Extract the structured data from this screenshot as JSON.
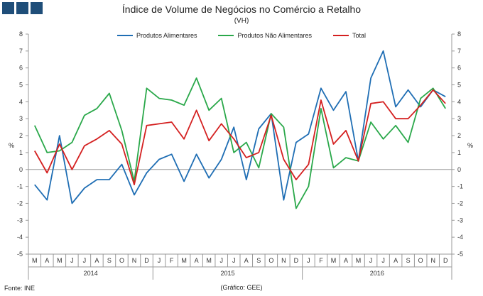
{
  "header": {
    "logo_squares": 3
  },
  "footer": {
    "source": "Fonte: INE",
    "credit": "(Gráfico: GEE)"
  },
  "chart_data": {
    "type": "line",
    "title": "Índice de Volume de Negócios no Comércio a Retalho",
    "subtitle": "(VH)",
    "ylabel_left": "%",
    "ylabel_right": "%",
    "ylim": [
      -5,
      8
    ],
    "yticks": [
      -5,
      -4,
      -3,
      -2,
      -1,
      0,
      1,
      2,
      3,
      4,
      5,
      6,
      7,
      8
    ],
    "grid": false,
    "legend": "top-center",
    "categories": [
      "M",
      "A",
      "M",
      "J",
      "J",
      "A",
      "S",
      "O",
      "N",
      "D",
      "J",
      "F",
      "M",
      "A",
      "M",
      "J",
      "J",
      "A",
      "S",
      "O",
      "N",
      "D",
      "J",
      "F",
      "M",
      "A",
      "M",
      "J",
      "J",
      "A",
      "S",
      "O",
      "N",
      "D"
    ],
    "years": [
      {
        "label": "2014",
        "months": 10
      },
      {
        "label": "2015",
        "months": 12
      },
      {
        "label": "2016",
        "months": 12
      }
    ],
    "series": [
      {
        "name": "Produtos Alimentares",
        "color": "#1f6eb4",
        "values": [
          -0.9,
          -1.8,
          2.0,
          -2.0,
          -1.1,
          -0.6,
          -0.6,
          0.3,
          -1.5,
          -0.2,
          0.6,
          0.9,
          -0.7,
          0.9,
          -0.5,
          0.6,
          2.5,
          -0.6,
          2.4,
          3.3,
          -1.8,
          1.6,
          2.1,
          4.8,
          3.5,
          4.6,
          0.5,
          5.4,
          7.0,
          3.7,
          4.7,
          3.7,
          4.7,
          4.3
        ]
      },
      {
        "name": "Produtos Não Alimentares",
        "color": "#2aa84a",
        "values": [
          2.6,
          1.0,
          1.1,
          1.6,
          3.2,
          3.6,
          4.5,
          2.3,
          -0.7,
          4.8,
          4.2,
          4.1,
          3.8,
          5.4,
          3.5,
          4.2,
          1.0,
          1.6,
          0.1,
          3.3,
          2.5,
          -2.3,
          -1.0,
          3.6,
          0.1,
          0.7,
          0.5,
          2.8,
          1.8,
          2.6,
          1.6,
          4.2,
          4.8,
          3.6
        ]
      },
      {
        "name": "Total",
        "color": "#d42020",
        "values": [
          1.1,
          -0.2,
          1.5,
          0.0,
          1.4,
          1.8,
          2.3,
          1.5,
          -0.9,
          2.6,
          2.7,
          2.8,
          1.8,
          3.5,
          1.7,
          2.7,
          1.8,
          0.7,
          1.0,
          3.2,
          0.6,
          -0.6,
          0.3,
          4.1,
          1.5,
          2.3,
          0.5,
          3.9,
          4.0,
          3.0,
          3.0,
          3.8,
          4.7,
          3.9
        ]
      }
    ]
  }
}
